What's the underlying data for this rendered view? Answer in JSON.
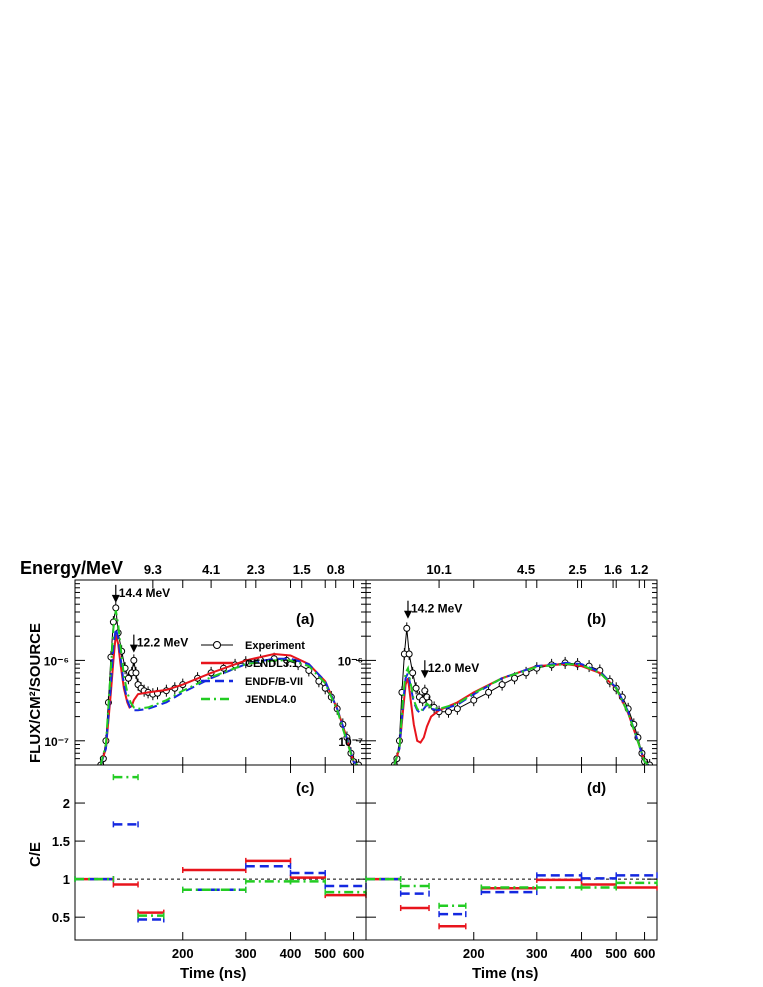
{
  "figure": {
    "top_axis_title": "Energy/MeV",
    "y_label_top": "FLUX/CM²/SOURCE",
    "y_label_bottom": "C/E",
    "x_label": "Time (ns)"
  },
  "colors": {
    "experiment": "#000000",
    "cendl": "#e8141c",
    "endf": "#1428e0",
    "jendl": "#22cc22"
  },
  "chart_data": [
    {
      "panel": "(a)",
      "type": "line",
      "x_unit": "ns",
      "xlim": [
        100,
        650
      ],
      "x_scale": "log",
      "y_scale": "log",
      "ylim": [
        5e-08,
        1e-05
      ],
      "y_tick_labels": [
        "10⁻⁷",
        "10⁻⁶"
      ],
      "energy_ticks": [
        {
          "time": 165,
          "label": "9.3"
        },
        {
          "time": 240,
          "label": "4.1"
        },
        {
          "time": 320,
          "label": "2.3"
        },
        {
          "time": 430,
          "label": "1.5"
        },
        {
          "time": 535,
          "label": "0.8"
        }
      ],
      "annotations": [
        {
          "time": 130,
          "value": 5.2e-06,
          "label": "14.4 MeV"
        },
        {
          "time": 146,
          "value": 1.25e-06,
          "label": "12.2 MeV"
        }
      ],
      "legend": [
        "Experiment",
        "CENDL3.1",
        "ENDF/B-VII",
        "JENDL4.0"
      ],
      "series": [
        {
          "name": "Experiment",
          "x": [
            118,
            120,
            122,
            124,
            126,
            128,
            130,
            132,
            135,
            138,
            141,
            144,
            146,
            148,
            150,
            153,
            156,
            160,
            165,
            170,
            180,
            190,
            200,
            220,
            240,
            260,
            280,
            300,
            330,
            360,
            390,
            420,
            450,
            480,
            500,
            520,
            540,
            560,
            575,
            590,
            600,
            610,
            620
          ],
          "y": [
            5e-08,
            6e-08,
            1e-07,
            3e-07,
            1.1e-06,
            3e-06,
            4.5e-06,
            2.2e-06,
            1.3e-06,
            8e-07,
            6e-07,
            7e-07,
            1e-06,
            7e-07,
            5e-07,
            4.5e-07,
            4.2e-07,
            4e-07,
            3.8e-07,
            3.9e-07,
            4.2e-07,
            4.5e-07,
            5e-07,
            6e-07,
            7e-07,
            8e-07,
            8.8e-07,
            9.5e-07,
            1e-06,
            1.05e-06,
            1e-06,
            9e-07,
            7.5e-07,
            5.5e-07,
            4.5e-07,
            3.5e-07,
            2.5e-07,
            1.6e-07,
            1.1e-07,
            7e-08,
            5.5e-08,
            5e-08,
            5e-08
          ]
        },
        {
          "name": "CENDL3.1",
          "x": [
            118,
            122,
            126,
            128,
            130,
            132,
            134,
            137,
            140,
            142,
            144,
            146,
            150,
            160,
            180,
            200,
            240,
            300,
            360,
            400,
            450,
            500,
            540,
            570,
            600,
            615
          ],
          "y": [
            5e-08,
            8e-08,
            4e-07,
            1e-06,
            2.1e-06,
            1.6e-06,
            9e-07,
            4.5e-07,
            3e-07,
            2.6e-07,
            2.7e-07,
            3.2e-07,
            3.8e-07,
            4e-07,
            4.3e-07,
            5e-07,
            7e-07,
            1e-06,
            1.2e-06,
            1.15e-06,
            9e-07,
            5.5e-07,
            2.5e-07,
            1.2e-07,
            5.5e-08,
            5e-08
          ]
        },
        {
          "name": "ENDF/B-VII",
          "x": [
            118,
            122,
            126,
            128,
            130,
            132,
            134,
            137,
            140,
            143,
            146,
            150,
            160,
            180,
            200,
            240,
            300,
            360,
            400,
            450,
            500,
            540,
            570,
            600,
            615
          ],
          "y": [
            5e-08,
            8e-08,
            5e-07,
            1.5e-06,
            2.5e-06,
            1.9e-06,
            1.1e-06,
            5e-07,
            3.2e-07,
            2.5e-07,
            2.4e-07,
            2.4e-07,
            2.5e-07,
            3e-07,
            4e-07,
            6e-07,
            9e-07,
            1.05e-06,
            1.05e-06,
            9e-07,
            5.5e-07,
            2.5e-07,
            1.2e-07,
            5.5e-08,
            5e-08
          ]
        },
        {
          "name": "JENDL4.0",
          "x": [
            118,
            122,
            126,
            128,
            130,
            132,
            134,
            137,
            140,
            143,
            146,
            150,
            160,
            180,
            200,
            240,
            300,
            360,
            400,
            450,
            500,
            540,
            570,
            600,
            615
          ],
          "y": [
            5e-08,
            9e-08,
            8e-07,
            2.5e-06,
            4.2e-06,
            2.8e-06,
            1.5e-06,
            6.5e-07,
            4e-07,
            3e-07,
            2.6e-07,
            2.5e-07,
            2.6e-07,
            3.2e-07,
            4.2e-07,
            6.2e-07,
            9e-07,
            1e-06,
            1e-06,
            8.5e-07,
            5.2e-07,
            2.4e-07,
            1.1e-07,
            5.5e-08,
            5e-08
          ]
        }
      ]
    },
    {
      "panel": "(b)",
      "type": "line",
      "x_unit": "ns",
      "xlim": [
        100,
        650
      ],
      "x_scale": "log",
      "y_scale": "log",
      "ylim": [
        5e-08,
        1e-05
      ],
      "y_tick_labels": [
        "10⁻⁷",
        "10⁻⁶"
      ],
      "energy_ticks": [
        {
          "time": 160,
          "label": "10.1"
        },
        {
          "time": 280,
          "label": "4.5"
        },
        {
          "time": 390,
          "label": "2.5"
        },
        {
          "time": 490,
          "label": "1.6"
        },
        {
          "time": 580,
          "label": "1.2"
        }
      ],
      "annotations": [
        {
          "time": 131,
          "value": 3.3e-06,
          "label": "14.2 MeV"
        },
        {
          "time": 146,
          "value": 6e-07,
          "label": "12.0 MeV"
        }
      ],
      "series": [
        {
          "name": "Experiment",
          "x": [
            120,
            122,
            124,
            126,
            128,
            130,
            132,
            135,
            138,
            141,
            144,
            146,
            148,
            150,
            155,
            160,
            170,
            180,
            200,
            220,
            240,
            260,
            280,
            300,
            330,
            360,
            390,
            420,
            450,
            480,
            500,
            520,
            540,
            560,
            575,
            590,
            600,
            610,
            620
          ],
          "y": [
            5e-08,
            6e-08,
            1e-07,
            4e-07,
            1.2e-06,
            2.5e-06,
            1.2e-06,
            7e-07,
            4.5e-07,
            3.5e-07,
            3.2e-07,
            4.2e-07,
            3.5e-07,
            3e-07,
            2.6e-07,
            2.3e-07,
            2.3e-07,
            2.5e-07,
            3.2e-07,
            4e-07,
            5e-07,
            6e-07,
            7e-07,
            8e-07,
            8.8e-07,
            9.3e-07,
            9e-07,
            8.5e-07,
            7.5e-07,
            5.5e-07,
            4.5e-07,
            3.5e-07,
            2.5e-07,
            1.6e-07,
            1.1e-07,
            7e-08,
            5.5e-08,
            5e-08,
            5e-08
          ]
        },
        {
          "name": "CENDL3.1",
          "x": [
            120,
            124,
            127,
            129,
            131,
            133,
            136,
            139,
            142,
            145,
            148,
            152,
            160,
            180,
            200,
            240,
            300,
            360,
            400,
            450,
            500,
            540,
            570,
            600,
            615
          ],
          "y": [
            5e-08,
            8e-08,
            2.5e-07,
            5e-07,
            6e-07,
            3.5e-07,
            1.6e-07,
            1e-07,
            9.5e-08,
            1.1e-07,
            1.5e-07,
            2e-07,
            2.4e-07,
            3e-07,
            4e-07,
            6e-07,
            8.5e-07,
            9e-07,
            8.5e-07,
            7e-07,
            4.5e-07,
            2.2e-07,
            1.1e-07,
            5.5e-08,
            5e-08
          ]
        },
        {
          "name": "ENDF/B-VII",
          "x": [
            120,
            124,
            127,
            129,
            131,
            133,
            136,
            139,
            142,
            145,
            148,
            152,
            160,
            180,
            200,
            240,
            300,
            360,
            400,
            450,
            500,
            540,
            570,
            600,
            615
          ],
          "y": [
            5e-08,
            8e-08,
            3e-07,
            6e-07,
            7e-07,
            5e-07,
            3e-07,
            2.4e-07,
            2.2e-07,
            2.5e-07,
            2.8e-07,
            2.5e-07,
            2.4e-07,
            2.8e-07,
            3.8e-07,
            6e-07,
            8.5e-07,
            9.3e-07,
            9e-07,
            7.2e-07,
            4.6e-07,
            2.3e-07,
            1.1e-07,
            5.5e-08,
            5e-08
          ]
        },
        {
          "name": "JENDL4.0",
          "x": [
            120,
            124,
            127,
            129,
            131,
            133,
            136,
            139,
            142,
            145,
            148,
            152,
            160,
            180,
            200,
            240,
            300,
            360,
            400,
            450,
            500,
            540,
            570,
            600,
            615
          ],
          "y": [
            5e-08,
            8e-08,
            3.5e-07,
            7e-07,
            8e-07,
            5.5e-07,
            3.2e-07,
            2.5e-07,
            2.3e-07,
            2.6e-07,
            2.9e-07,
            2.6e-07,
            2.5e-07,
            2.9e-07,
            3.9e-07,
            6e-07,
            8.3e-07,
            9e-07,
            8.8e-07,
            7e-07,
            4.5e-07,
            2.2e-07,
            1.1e-07,
            5.5e-08,
            5e-08
          ]
        }
      ]
    },
    {
      "panel": "(c)",
      "type": "step",
      "x_unit": "ns",
      "xlim": [
        100,
        650
      ],
      "x_scale": "log",
      "x_ticks": [
        200,
        300,
        400,
        500,
        600
      ],
      "x_tick_labels": [
        "200",
        "300",
        "400",
        "500",
        "600"
      ],
      "ylim": [
        0.2,
        2.5
      ],
      "y_ticks": [
        0.5,
        1,
        1.5,
        2
      ],
      "y_tick_labels": [
        "0.5",
        "1",
        "1.5",
        "2"
      ],
      "reference_line": 1,
      "series": [
        {
          "name": "CENDL3.1",
          "bins": [
            [
              100,
              128,
              1.0
            ],
            [
              128,
              150,
              0.93
            ],
            [
              150,
              177,
              0.56
            ],
            [
              200,
              300,
              1.12
            ],
            [
              300,
              400,
              1.24
            ],
            [
              400,
              500,
              1.02
            ],
            [
              500,
              650,
              0.79
            ]
          ]
        },
        {
          "name": "ENDF/B-VII",
          "bins": [
            [
              100,
              128,
              1.0
            ],
            [
              128,
              150,
              1.72
            ],
            [
              150,
              177,
              0.47
            ],
            [
              200,
              300,
              0.86
            ],
            [
              300,
              400,
              1.17
            ],
            [
              400,
              500,
              1.08
            ],
            [
              500,
              650,
              0.91
            ]
          ]
        },
        {
          "name": "JENDL4.0",
          "bins": [
            [
              100,
              128,
              1.0
            ],
            [
              128,
              150,
              2.34
            ],
            [
              150,
              177,
              0.52
            ],
            [
              200,
              300,
              0.86
            ],
            [
              300,
              400,
              0.97
            ],
            [
              400,
              500,
              0.97
            ],
            [
              500,
              650,
              0.83
            ]
          ]
        }
      ]
    },
    {
      "panel": "(d)",
      "type": "step",
      "x_unit": "ns",
      "xlim": [
        100,
        650
      ],
      "x_scale": "log",
      "x_ticks": [
        200,
        300,
        400,
        500,
        600
      ],
      "x_tick_labels": [
        "200",
        "300",
        "400",
        "500",
        "600"
      ],
      "ylim": [
        0.2,
        2.5
      ],
      "reference_line": 1,
      "series": [
        {
          "name": "CENDL3.1",
          "bins": [
            [
              100,
              125,
              1.0
            ],
            [
              125,
              150,
              0.62
            ],
            [
              160,
              190,
              0.38
            ],
            [
              210,
              300,
              0.88
            ],
            [
              300,
              400,
              0.99
            ],
            [
              400,
              500,
              0.93
            ],
            [
              500,
              650,
              0.89
            ]
          ]
        },
        {
          "name": "ENDF/B-VII",
          "bins": [
            [
              100,
              125,
              1.0
            ],
            [
              125,
              150,
              0.81
            ],
            [
              160,
              190,
              0.54
            ],
            [
              210,
              300,
              0.83
            ],
            [
              300,
              400,
              1.05
            ],
            [
              400,
              500,
              1.01
            ],
            [
              500,
              650,
              1.05
            ]
          ]
        },
        {
          "name": "JENDL4.0",
          "bins": [
            [
              100,
              125,
              1.0
            ],
            [
              125,
              150,
              0.91
            ],
            [
              160,
              190,
              0.65
            ],
            [
              210,
              300,
              0.89
            ],
            [
              300,
              400,
              0.89
            ],
            [
              400,
              500,
              0.89
            ],
            [
              500,
              650,
              0.95
            ]
          ]
        }
      ]
    }
  ]
}
